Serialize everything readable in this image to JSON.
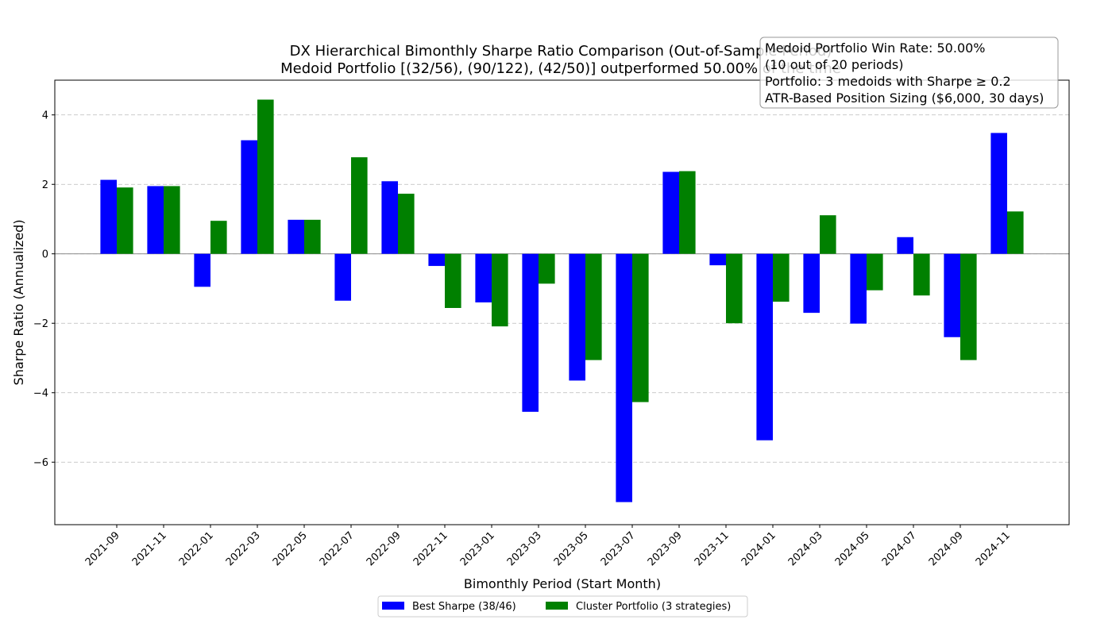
{
  "chart_data": {
    "type": "bar",
    "title": "DX Hierarchical Bimonthly Sharpe Ratio Comparison (Out-of-Sample Period)",
    "subtitle": "Medoid Portfolio [(32/56), (90/122), (42/50)] outperformed 50.00% of the time",
    "xlabel": "Bimonthly Period (Start Month)",
    "ylabel": "Sharpe Ratio (Annualized)",
    "ylim": [
      -7.8,
      5.0
    ],
    "yticks": [
      -6,
      -4,
      -2,
      0,
      2,
      4
    ],
    "ytick_labels": [
      "−6",
      "−4",
      "−2",
      "0",
      "2",
      "4"
    ],
    "grid": "y-dashed",
    "legend_position": "bottom-center",
    "categories": [
      "2021-09",
      "2021-11",
      "2022-01",
      "2022-03",
      "2022-05",
      "2022-07",
      "2022-09",
      "2022-11",
      "2023-01",
      "2023-03",
      "2023-05",
      "2023-07",
      "2023-09",
      "2023-11",
      "2024-01",
      "2024-03",
      "2024-05",
      "2024-07",
      "2024-09",
      "2024-11"
    ],
    "series": [
      {
        "name": "Best Sharpe (38/46)",
        "color": "#0000ff",
        "values": [
          2.13,
          1.95,
          -0.95,
          3.27,
          0.98,
          -1.35,
          2.09,
          -0.35,
          -1.4,
          -4.55,
          -3.65,
          -7.15,
          2.36,
          -0.33,
          -5.37,
          -1.7,
          -2.01,
          0.48,
          -2.4,
          3.48
        ]
      },
      {
        "name": "Cluster Portfolio (3 strategies)",
        "color": "#008000",
        "values": [
          1.91,
          1.95,
          0.95,
          4.44,
          0.98,
          2.78,
          1.73,
          -1.56,
          -2.09,
          -0.86,
          -3.06,
          -4.27,
          2.38,
          -2.0,
          -1.38,
          1.11,
          -1.05,
          -1.2,
          -3.06,
          1.22
        ]
      }
    ],
    "annotation": [
      "Medoid Portfolio Win Rate: 50.00%",
      "(10 out of 20 periods)",
      "Portfolio: 3 medoids with Sharpe ≥ 0.2",
      "ATR-Based Position Sizing ($6,000, 30 days)"
    ]
  }
}
